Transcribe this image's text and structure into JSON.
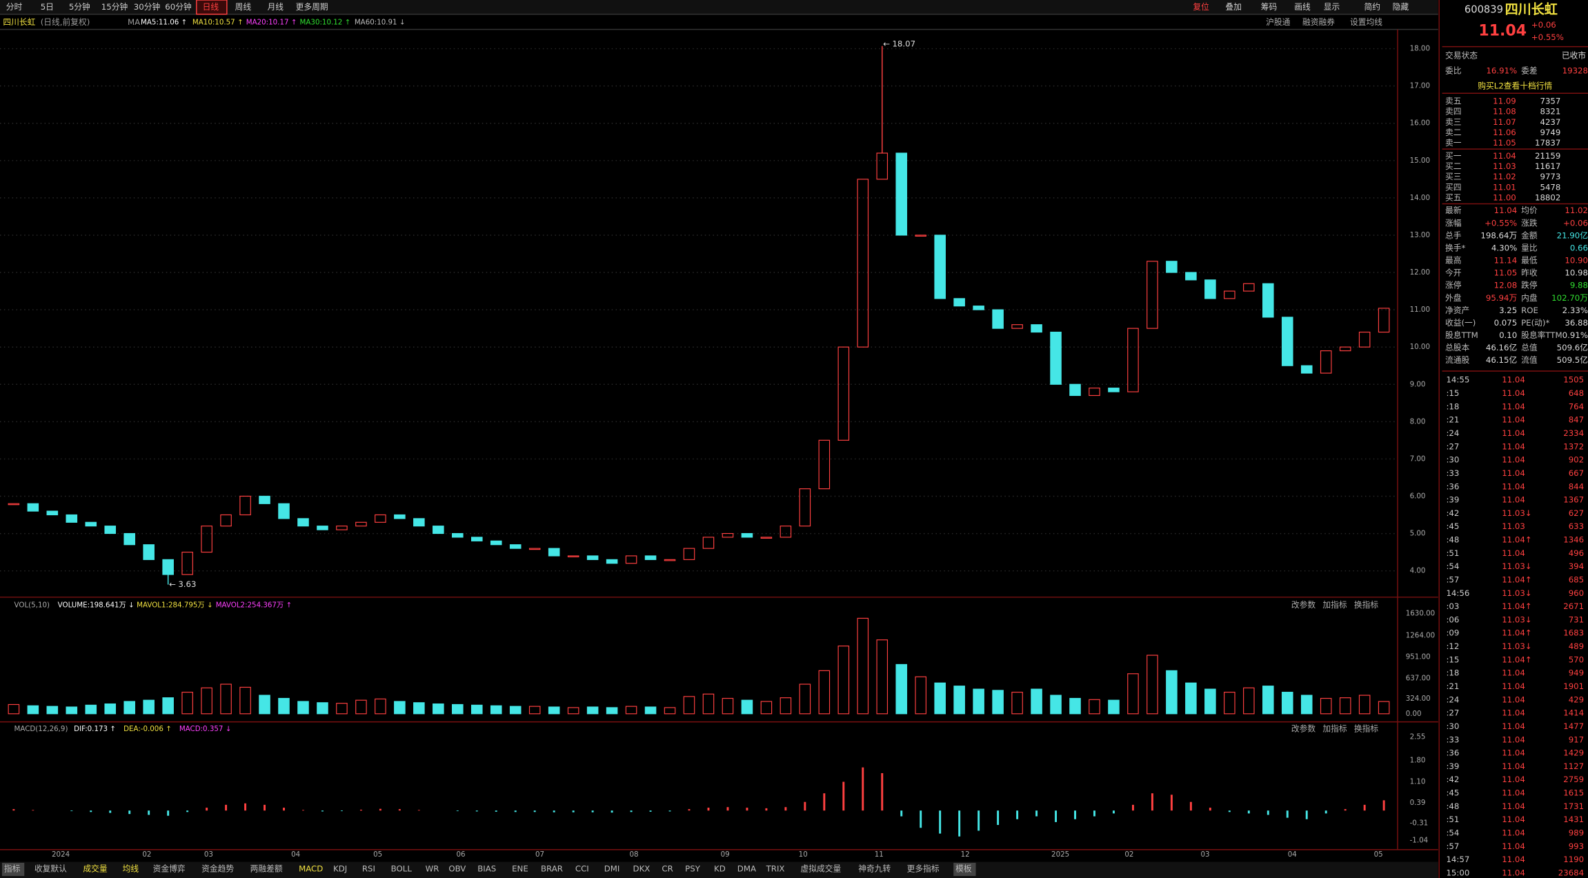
{
  "toolbar": {
    "periods": [
      "分时",
      "5日",
      "5分钟",
      "15分钟",
      "30分钟",
      "60分钟",
      "日线",
      "周线",
      "月线",
      "更多周期"
    ],
    "tools": [
      "复位",
      "叠加",
      "筹码",
      "画线",
      "显示",
      "简约",
      "隐藏"
    ]
  },
  "chart_header": {
    "name": "四川长虹",
    "mode": "(日线,前复权)",
    "ma_label": "MA",
    "ma": [
      "MA5:11.06 ↑",
      "MA10:10.57 ↑",
      "MA20:10.17 ↑",
      "MA30:10.12 ↑",
      "MA60:10.91 ↓"
    ],
    "links": [
      "沪股通",
      "融资融券",
      "设置均线"
    ]
  },
  "price": {
    "axis": [
      "18.00",
      "17.00",
      "16.00",
      "15.00",
      "14.00",
      "13.00",
      "12.00",
      "11.00",
      "10.00",
      "9.00",
      "8.00",
      "7.00",
      "6.00",
      "5.00",
      "4.00"
    ],
    "range": [
      3.32,
      18.49
    ],
    "high": 18.07,
    "low": 3.63,
    "closes": [
      5.8,
      5.6,
      5.5,
      5.3,
      5.2,
      5.0,
      4.7,
      4.3,
      3.9,
      4.5,
      5.2,
      5.5,
      6.0,
      5.8,
      5.4,
      5.2,
      5.1,
      5.2,
      5.3,
      5.5,
      5.4,
      5.2,
      5.0,
      4.9,
      4.8,
      4.7,
      4.6,
      4.6,
      4.4,
      4.4,
      4.3,
      4.2,
      4.4,
      4.3,
      4.3,
      4.6,
      4.9,
      5.0,
      4.9,
      4.9,
      5.2,
      6.2,
      7.5,
      10.0,
      14.5,
      15.2,
      13.0,
      13.0,
      11.3,
      11.1,
      11.0,
      10.5,
      10.6,
      10.4,
      9.0,
      8.7,
      8.9,
      8.8,
      10.5,
      12.3,
      12.0,
      11.8,
      11.3,
      11.5,
      11.7,
      10.8,
      9.5,
      9.3,
      9.9,
      10.0,
      10.4,
      11.04
    ]
  },
  "volume": {
    "header": [
      "VOL(5,10)",
      "VOLUME:198.641万 ↓",
      "MAVOL1:284.795万 ↓",
      "MAVOL2:254.367万 ↑"
    ],
    "buttons": [
      "改参数",
      "加指标",
      "换指标"
    ],
    "axis": [
      "1630.00",
      "1264.00",
      "951.00",
      "637.00",
      "324.00",
      "0.00"
    ],
    "range": [
      0,
      1712
    ],
    "values": [
      150,
      130,
      120,
      110,
      140,
      160,
      200,
      220,
      260,
      350,
      420,
      480,
      430,
      300,
      250,
      200,
      180,
      170,
      220,
      240,
      200,
      180,
      160,
      150,
      140,
      130,
      120,
      120,
      110,
      100,
      110,
      100,
      120,
      110,
      100,
      280,
      320,
      250,
      220,
      200,
      260,
      480,
      700,
      1100,
      1550,
      1200,
      800,
      600,
      500,
      450,
      400,
      380,
      350,
      400,
      300,
      250,
      230,
      220,
      650,
      950,
      700,
      500,
      400,
      350,
      420,
      450,
      350,
      300,
      250,
      260,
      300,
      199
    ]
  },
  "macd": {
    "header": [
      "MACD(12,26,9)",
      "DIF:0.173 ↑",
      "DEA:-0.006 ↑",
      "MACD:0.357 ↓"
    ],
    "buttons": [
      "改参数",
      "加指标",
      "换指标"
    ],
    "axis": [
      "2.55",
      "1.80",
      "1.10",
      "0.39",
      "-0.31",
      "-1.04"
    ],
    "range": [
      -1.04,
      2.8
    ],
    "values": [
      0.05,
      0.02,
      0,
      -0.02,
      -0.05,
      -0.08,
      -0.12,
      -0.15,
      -0.18,
      -0.05,
      0.1,
      0.2,
      0.25,
      0.2,
      0.1,
      0.02,
      -0.03,
      -0.02,
      0.03,
      0.06,
      0.05,
      0.02,
      0,
      -0.02,
      -0.03,
      -0.04,
      -0.05,
      -0.05,
      -0.06,
      -0.06,
      -0.06,
      -0.07,
      -0.05,
      -0.04,
      -0.03,
      0.05,
      0.1,
      0.12,
      0.1,
      0.08,
      0.12,
      0.3,
      0.6,
      1.0,
      1.5,
      1.3,
      -0.2,
      -0.6,
      -0.8,
      -0.9,
      -0.7,
      -0.5,
      -0.3,
      -0.2,
      -0.4,
      -0.3,
      -0.2,
      -0.1,
      0.2,
      0.6,
      0.55,
      0.3,
      0.1,
      -0.05,
      -0.1,
      -0.15,
      -0.25,
      -0.3,
      -0.1,
      0.05,
      0.2,
      0.357
    ]
  },
  "dates": [
    "2024",
    "02",
    "03",
    "04",
    "05",
    "06",
    "07",
    "08",
    "09",
    "10",
    "11",
    "12",
    "2025",
    "02",
    "03",
    "04",
    "05"
  ],
  "indicator_tabs": [
    "指标",
    "收复默认",
    "成交量",
    "均线",
    "资金博弈",
    "资金趋势",
    "两融差额",
    "MACD",
    "KDJ",
    "RSI",
    "BOLL",
    "WR",
    "OBV",
    "BIAS",
    "ENE",
    "BRAR",
    "CCI",
    "DMI",
    "DKX",
    "CR",
    "PSY",
    "KD",
    "DMA",
    "TRIX",
    "虚拟成交量",
    "神奇九转",
    "更多指标",
    "模板"
  ],
  "quote": {
    "code": "600839",
    "name": "四川长虹",
    "price": "11.04",
    "change": "+0.06",
    "pct": "+0.55%",
    "status_label": "交易状态",
    "status": "已收市",
    "ratio_label": "委比",
    "ratio": "16.91%",
    "diff_label": "委差",
    "diff": "19328",
    "l2": "购买L2查看十档行情",
    "asks": [
      [
        "卖五",
        "11.09",
        "7357"
      ],
      [
        "卖四",
        "11.08",
        "8321"
      ],
      [
        "卖三",
        "11.07",
        "4237"
      ],
      [
        "卖二",
        "11.06",
        "9749"
      ],
      [
        "卖一",
        "11.05",
        "17837"
      ]
    ],
    "bids": [
      [
        "买一",
        "11.04",
        "21159"
      ],
      [
        "买二",
        "11.03",
        "11617"
      ],
      [
        "买三",
        "11.02",
        "9773"
      ],
      [
        "买四",
        "11.01",
        "5478"
      ],
      [
        "买五",
        "11.00",
        "18802"
      ]
    ],
    "stats": [
      [
        "最新",
        "11.04",
        "均价",
        "11.02"
      ],
      [
        "涨幅",
        "+0.55%",
        "涨跌",
        "+0.06"
      ],
      [
        "总手",
        "198.64万",
        "金额",
        "21.90亿"
      ],
      [
        "换手*",
        "4.30%",
        "量比",
        "0.66"
      ],
      [
        "最高",
        "11.14",
        "最低",
        "10.90"
      ],
      [
        "今开",
        "11.05",
        "昨收",
        "10.98"
      ],
      [
        "涨停",
        "12.08",
        "跌停",
        "9.88"
      ],
      [
        "外盘",
        "95.94万",
        "内盘",
        "102.70万"
      ],
      [
        "净资产",
        "3.25",
        "ROE",
        "2.33%"
      ],
      [
        "收益(一)",
        "0.075",
        "PE(动)*",
        "36.88"
      ],
      [
        "股息TTM",
        "0.10",
        "股息率TTM",
        "0.91%"
      ],
      [
        "总股本",
        "46.16亿",
        "总值",
        "509.6亿"
      ],
      [
        "流通股",
        "46.15亿",
        "流值",
        "509.5亿"
      ]
    ],
    "ticks": [
      [
        "14:55",
        "11.04",
        "1505"
      ],
      [
        ":15",
        "11.04",
        "648"
      ],
      [
        ":18",
        "11.04",
        "764"
      ],
      [
        ":21",
        "11.04",
        "847"
      ],
      [
        ":24",
        "11.04",
        "2334"
      ],
      [
        ":27",
        "11.04",
        "1372"
      ],
      [
        ":30",
        "11.04",
        "902"
      ],
      [
        ":33",
        "11.04",
        "667"
      ],
      [
        ":36",
        "11.04",
        "844"
      ],
      [
        ":39",
        "11.04",
        "1367"
      ],
      [
        ":42",
        "11.03↓",
        "627"
      ],
      [
        ":45",
        "11.03",
        "633"
      ],
      [
        ":48",
        "11.04↑",
        "1346"
      ],
      [
        ":51",
        "11.04",
        "496"
      ],
      [
        ":54",
        "11.03↓",
        "394"
      ],
      [
        ":57",
        "11.04↑",
        "685"
      ],
      [
        "14:56",
        "11.03↓",
        "960"
      ],
      [
        ":03",
        "11.04↑",
        "2671"
      ],
      [
        ":06",
        "11.03↓",
        "731"
      ],
      [
        ":09",
        "11.04↑",
        "1683"
      ],
      [
        ":12",
        "11.03↓",
        "489"
      ],
      [
        ":15",
        "11.04↑",
        "570"
      ],
      [
        ":18",
        "11.04",
        "949"
      ],
      [
        ":21",
        "11.04",
        "1901"
      ],
      [
        ":24",
        "11.04",
        "429"
      ],
      [
        ":27",
        "11.04",
        "1414"
      ],
      [
        ":30",
        "11.04",
        "1477"
      ],
      [
        ":33",
        "11.04",
        "917"
      ],
      [
        ":36",
        "11.04",
        "1429"
      ],
      [
        ":39",
        "11.04",
        "1127"
      ],
      [
        ":42",
        "11.04",
        "2759"
      ],
      [
        ":45",
        "11.04",
        "1615"
      ],
      [
        ":48",
        "11.04",
        "1731"
      ],
      [
        ":51",
        "11.04",
        "1431"
      ],
      [
        ":54",
        "11.04",
        "989"
      ],
      [
        ":57",
        "11.04",
        "993"
      ],
      [
        "14:57",
        "11.04",
        "1190"
      ],
      [
        "15:00",
        "11.04",
        "23684"
      ]
    ]
  }
}
